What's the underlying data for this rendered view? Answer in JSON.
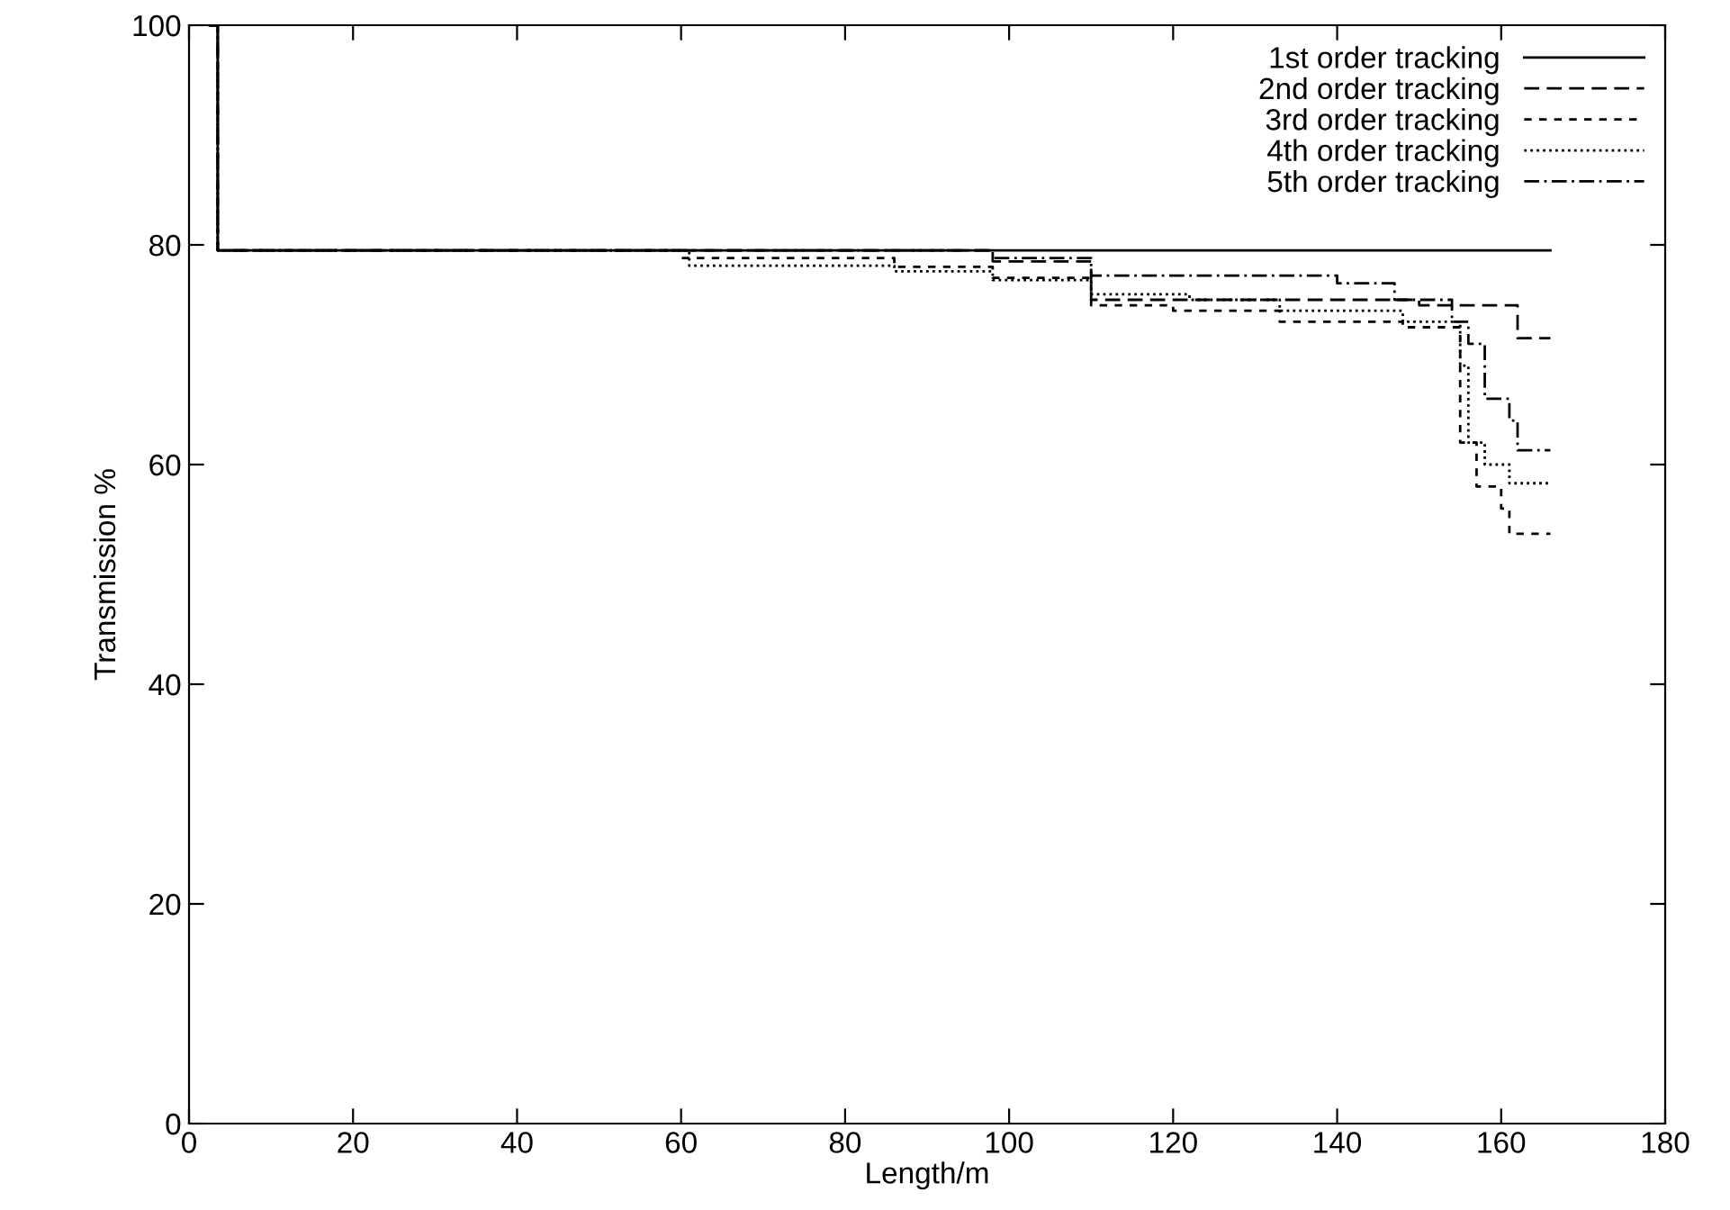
{
  "chart_data": {
    "type": "step",
    "xlabel": "Length/m",
    "ylabel": "Transmission %",
    "xlim": [
      0,
      180
    ],
    "ylim": [
      0,
      100
    ],
    "xticks": [
      0,
      20,
      40,
      60,
      80,
      100,
      120,
      140,
      160,
      180
    ],
    "yticks": [
      0,
      20,
      40,
      60,
      80,
      100
    ],
    "grid": false,
    "legend": "top right",
    "series": [
      {
        "name": "1st order tracking",
        "color": "#000000",
        "line_style": "solid",
        "x": [
          2.5,
          3.5,
          166
        ],
        "values": [
          100,
          79.5,
          79.5
        ]
      },
      {
        "name": "2nd order tracking",
        "color": "#000000",
        "line_style": "dashed",
        "x": [
          2.5,
          3.5,
          98,
          110,
          150,
          162,
          166
        ],
        "values": [
          100,
          79.5,
          78.5,
          75,
          74.5,
          71.5,
          71.5
        ]
      },
      {
        "name": "3rd order tracking",
        "color": "#000000",
        "line_style": "dashed",
        "x": [
          2.5,
          3.5,
          60,
          86,
          98,
          110,
          120,
          133,
          148,
          155,
          157,
          160,
          161,
          166
        ],
        "values": [
          100,
          79.5,
          78.8,
          78,
          77,
          74.5,
          74,
          73,
          72.5,
          62,
          58,
          56,
          53.7,
          53.7
        ]
      },
      {
        "name": "4th order tracking",
        "color": "#000000",
        "line_style": "dotted",
        "x": [
          2.5,
          3.5,
          61,
          86,
          98,
          110,
          122,
          133,
          148,
          155,
          156,
          158,
          161,
          166
        ],
        "values": [
          100,
          79.5,
          78.1,
          77.6,
          76.8,
          75.5,
          75,
          74,
          73,
          69,
          62,
          60,
          58.3,
          58.3
        ]
      },
      {
        "name": "5th order tracking",
        "color": "#000000",
        "line_style": "dashed",
        "x": [
          2.5,
          3.5,
          98,
          110,
          140,
          147,
          154,
          156,
          158,
          161,
          162,
          166
        ],
        "values": [
          100,
          79.5,
          78.8,
          77.2,
          76.5,
          75,
          73,
          71,
          66,
          64,
          61.3,
          61.3
        ]
      }
    ]
  }
}
